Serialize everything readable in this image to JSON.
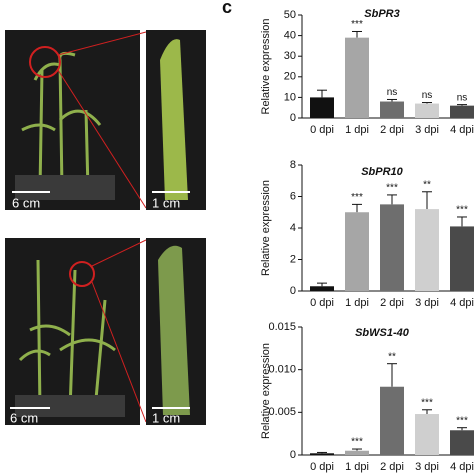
{
  "panel_label": "c",
  "photo_labels": {
    "top_plant_scale": "6 cm",
    "top_leaf_scale": "1 cm",
    "bottom_plant_scale": "6 cm",
    "bottom_leaf_scale": "1 cm"
  },
  "chart_data": [
    {
      "type": "bar",
      "title": "SbPR3",
      "y_label": "Relative expression",
      "categories": [
        "0 dpi",
        "1 dpi",
        "2 dpi",
        "3 dpi",
        "4 dpi"
      ],
      "values": [
        10,
        39,
        8,
        7,
        6
      ],
      "errors": [
        3.5,
        3,
        1,
        0.5,
        0.5
      ],
      "annotations": [
        null,
        "***",
        "ns",
        "ns",
        "ns"
      ],
      "colors": [
        "#111111",
        "#a6a6a6",
        "#6e6e6e",
        "#cfcfcf",
        "#4a4a4a"
      ],
      "ylim": [
        0,
        50
      ],
      "yticks": [
        0,
        10,
        20,
        30,
        40,
        50
      ]
    },
    {
      "type": "bar",
      "title": "SbPR10",
      "y_label": "Relative expression",
      "categories": [
        "0 dpi",
        "1 dpi",
        "2 dpi",
        "3 dpi",
        "4 dpi"
      ],
      "values": [
        0.3,
        5.0,
        5.5,
        5.2,
        4.1
      ],
      "errors": [
        0.2,
        0.5,
        0.6,
        1.1,
        0.6
      ],
      "annotations": [
        null,
        "***",
        "***",
        "**",
        "***"
      ],
      "colors": [
        "#111111",
        "#a6a6a6",
        "#6e6e6e",
        "#cfcfcf",
        "#4a4a4a"
      ],
      "ylim": [
        0,
        8
      ],
      "yticks": [
        0,
        2,
        4,
        6,
        8
      ]
    },
    {
      "type": "bar",
      "title": "SbWS1-40",
      "y_label": "Relative expression",
      "categories": [
        "0 dpi",
        "1 dpi",
        "2 dpi",
        "3 dpi",
        "4 dpi"
      ],
      "values": [
        0.0002,
        0.0005,
        0.008,
        0.0048,
        0.0029
      ],
      "errors": [
        0.0001,
        0.0002,
        0.0027,
        0.0005,
        0.0003
      ],
      "annotations": [
        null,
        "***",
        "**",
        "***",
        "***"
      ],
      "colors": [
        "#111111",
        "#a6a6a6",
        "#6e6e6e",
        "#cfcfcf",
        "#4a4a4a"
      ],
      "ylim": [
        0,
        0.015
      ],
      "yticks": [
        0,
        0.005,
        {
          "value": 0.01,
          "label": "0.010"
        },
        0.015
      ]
    }
  ]
}
